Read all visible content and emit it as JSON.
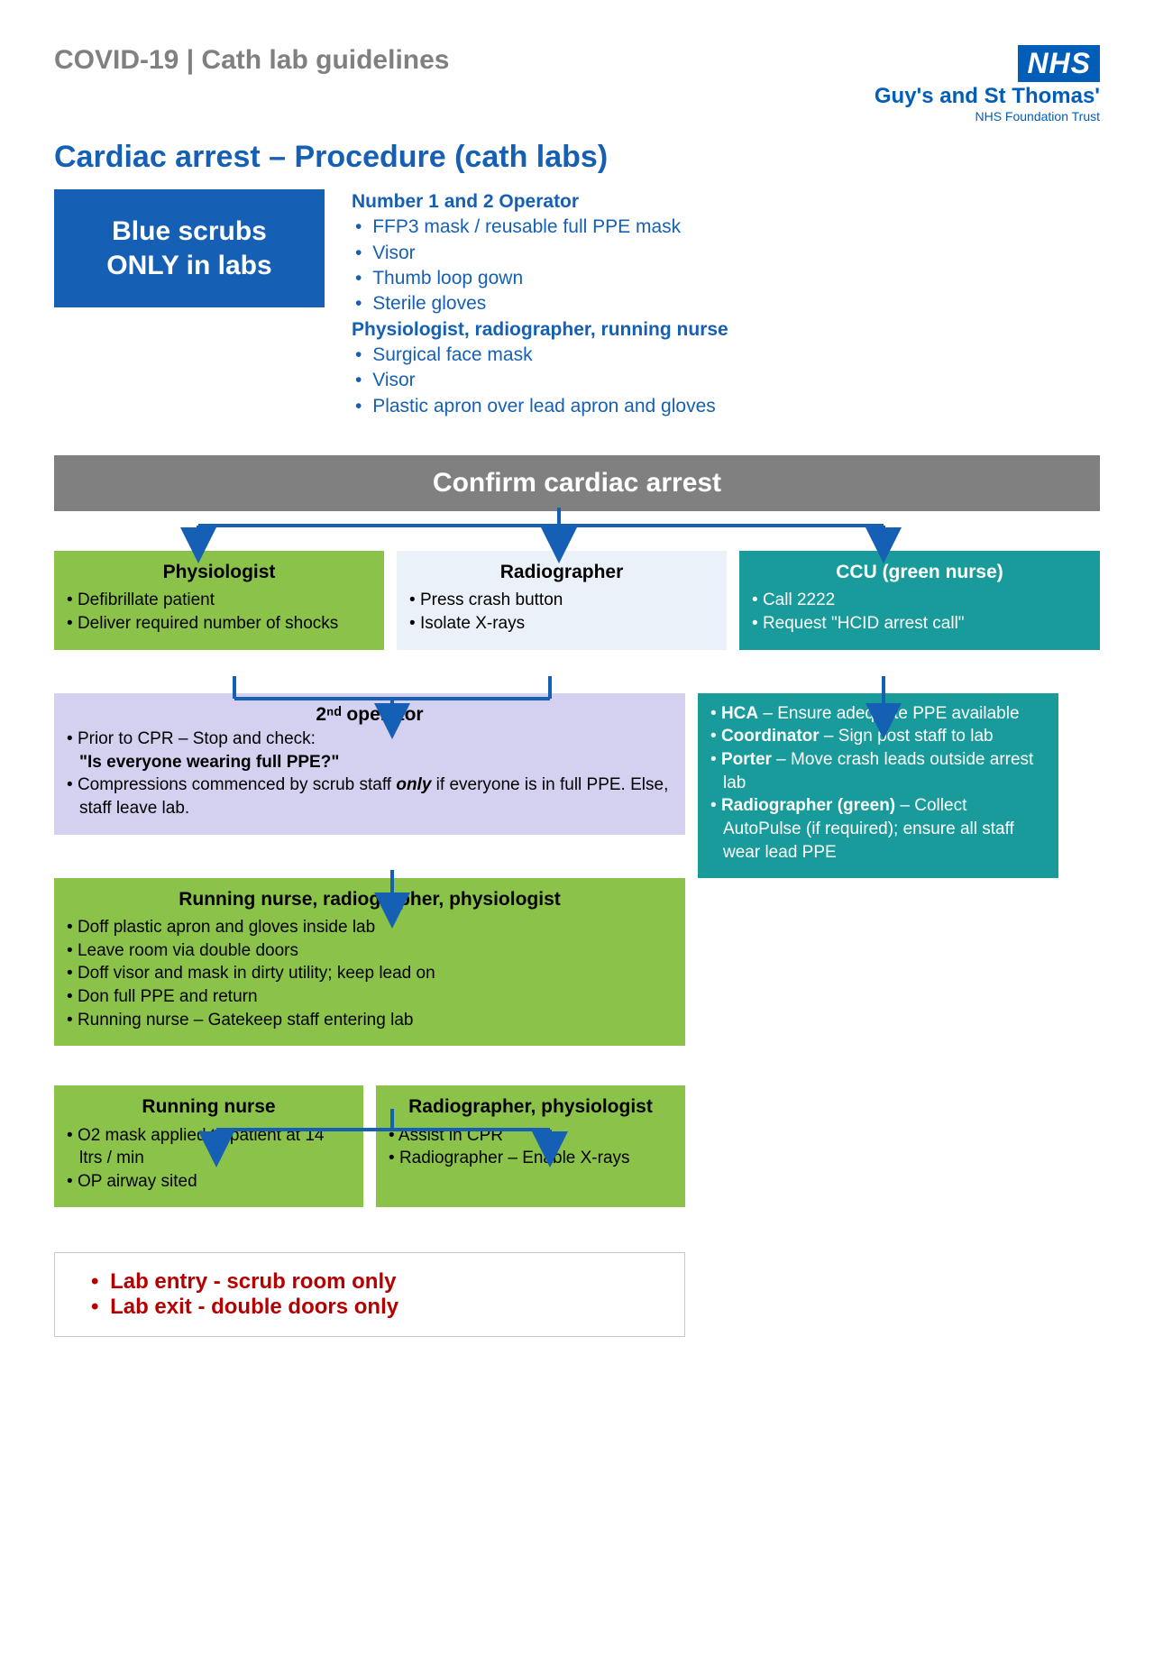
{
  "header": {
    "doc_title": "COVID-19 | Cath lab guidelines",
    "nhs_logo": "NHS",
    "trust_name": "Guy's and St Thomas'",
    "trust_sub": "NHS Foundation Trust"
  },
  "page_title": "Cardiac arrest – Procedure (cath labs)",
  "intro": {
    "blue_scrubs_l1": "Blue scrubs",
    "blue_scrubs_l2": "ONLY in labs",
    "ppe_operator_hdr": "Number 1 and 2 Operator",
    "ppe_operator_items": [
      "FFP3 mask / reusable full PPE mask",
      "Visor",
      "Thumb loop gown",
      "Sterile gloves"
    ],
    "ppe_other_hdr": "Physiologist, radiographer, running nurse",
    "ppe_other_items": [
      "Surgical face mask",
      "Visor",
      "Plastic apron over lead apron and gloves"
    ]
  },
  "confirm_bar": "Confirm cardiac arrest",
  "colors": {
    "green": "#8bc34a",
    "pale": "#eaf1f9",
    "teal": "#1a9b9b",
    "lilac": "#d4d0ef",
    "grey": "#808080",
    "blue": "#1560b5",
    "arrow": "#1560b5",
    "red": "#b50000"
  },
  "row3": {
    "physio": {
      "title": "Physiologist",
      "items": [
        "Defibrillate patient",
        "Deliver required number of shocks"
      ]
    },
    "radio": {
      "title": "Radiographer",
      "items": [
        "Press crash button",
        "Isolate X-rays"
      ]
    },
    "ccu": {
      "title": "CCU (green nurse)",
      "items": [
        "Call 2222",
        "Request \"HCID arrest call\""
      ]
    }
  },
  "operator2": {
    "title": "2ⁿᵈ operator",
    "line1_pre": "Prior to CPR – Stop and check:",
    "line1_q": "\"Is everyone wearing full PPE?\"",
    "line2_a": "Compressions commenced by scrub staff ",
    "line2_only": "only",
    "line2_b": " if everyone is in full PPE. Else, staff leave lab."
  },
  "teal_tall": {
    "items": [
      {
        "b": "HCA",
        "t": " – Ensure adequate PPE available"
      },
      {
        "b": "Coordinator",
        "t": " – Sign post staff to lab"
      },
      {
        "b": "Porter",
        "t": " – Move crash leads outside arrest lab"
      },
      {
        "b": "Radiographer (green)",
        "t": " – Collect AutoPulse (if required); ensure all staff wear lead PPE"
      }
    ]
  },
  "green_wide": {
    "title": "Running nurse, radiographer, physiologist",
    "items": [
      "Doff plastic apron and gloves inside lab",
      "Leave room via double doors",
      "Doff visor and mask in dirty utility; keep lead on",
      "Don full PPE and return",
      "Running nurse – Gatekeep staff entering lab"
    ]
  },
  "final": {
    "running": {
      "title": "Running nurse",
      "items": [
        "O2 mask applied to patient at 14 ltrs / min",
        "OP airway sited"
      ]
    },
    "radio": {
      "title": "Radiographer, physiologist",
      "items": [
        "Assist in CPR",
        "Radiographer – Enable X-rays"
      ]
    }
  },
  "footer": {
    "items": [
      "Lab entry - scrub room only",
      "Lab exit - double doors only"
    ]
  }
}
